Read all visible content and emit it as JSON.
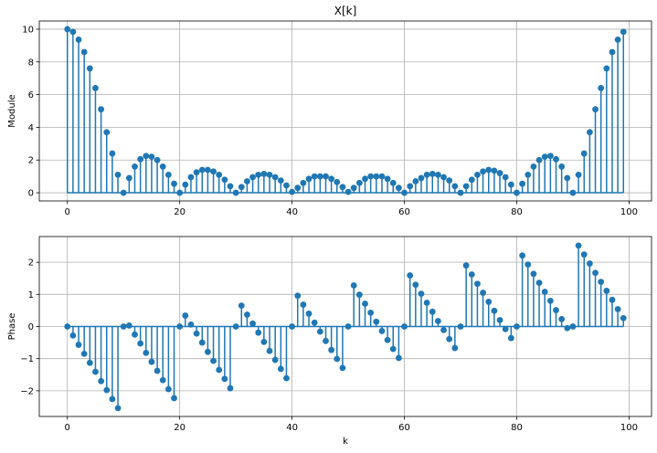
{
  "colors": {
    "stem": "#1f77b4",
    "grid": "#b0b0b0",
    "axes": "#000000"
  },
  "chart_data": [
    {
      "type": "stem",
      "title": "X[k]",
      "xlabel": "",
      "ylabel": "Module",
      "xlim": [
        -5,
        104
      ],
      "ylim": [
        -0.5,
        10.5
      ],
      "xticks": [
        0,
        20,
        40,
        60,
        80,
        100
      ],
      "yticks": [
        0,
        2,
        4,
        6,
        8,
        10
      ],
      "grid": true,
      "x": [
        0,
        1,
        2,
        3,
        4,
        5,
        6,
        7,
        8,
        9,
        10,
        11,
        12,
        13,
        14,
        15,
        16,
        17,
        18,
        19,
        20,
        21,
        22,
        23,
        24,
        25,
        26,
        27,
        28,
        29,
        30,
        31,
        32,
        33,
        34,
        35,
        36,
        37,
        38,
        39,
        40,
        41,
        42,
        43,
        44,
        45,
        46,
        47,
        48,
        49,
        50,
        51,
        52,
        53,
        54,
        55,
        56,
        57,
        58,
        59,
        60,
        61,
        62,
        63,
        64,
        65,
        66,
        67,
        68,
        69,
        70,
        71,
        72,
        73,
        74,
        75,
        76,
        77,
        78,
        79,
        80,
        81,
        82,
        83,
        84,
        85,
        86,
        87,
        88,
        89,
        90,
        91,
        92,
        93,
        94,
        95,
        96,
        97,
        98,
        99
      ],
      "values": [
        10.0,
        9.84,
        9.36,
        8.6,
        7.6,
        6.4,
        5.1,
        3.7,
        2.4,
        1.1,
        0.0,
        0.9,
        1.6,
        2.05,
        2.25,
        2.2,
        2.0,
        1.6,
        1.1,
        0.55,
        0.0,
        0.5,
        0.95,
        1.25,
        1.4,
        1.4,
        1.3,
        1.1,
        0.8,
        0.4,
        0.0,
        0.35,
        0.7,
        0.95,
        1.1,
        1.15,
        1.1,
        0.95,
        0.75,
        0.45,
        0.05,
        0.3,
        0.6,
        0.85,
        1.0,
        1.0,
        1.0,
        0.85,
        0.65,
        0.35,
        0.05,
        0.3,
        0.6,
        0.85,
        1.0,
        1.0,
        1.0,
        0.85,
        0.6,
        0.3,
        0.0,
        0.4,
        0.7,
        0.9,
        1.1,
        1.15,
        1.1,
        0.95,
        0.75,
        0.4,
        0.0,
        0.4,
        0.8,
        1.1,
        1.3,
        1.4,
        1.35,
        1.2,
        0.95,
        0.5,
        0.0,
        0.55,
        1.1,
        1.6,
        2.0,
        2.2,
        2.25,
        2.05,
        1.6,
        0.9,
        0.0,
        1.1,
        2.4,
        3.7,
        5.1,
        6.4,
        7.6,
        8.6,
        9.36,
        9.84
      ]
    },
    {
      "type": "stem",
      "title": "",
      "xlabel": "k",
      "ylabel": "Phase",
      "xlim": [
        -5,
        104
      ],
      "ylim": [
        -2.8,
        2.8
      ],
      "xticks": [
        0,
        20,
        40,
        60,
        80,
        100
      ],
      "yticks": [
        -2,
        -1,
        0,
        1,
        2
      ],
      "grid": true,
      "x": [
        0,
        1,
        2,
        3,
        4,
        5,
        6,
        7,
        8,
        9,
        10,
        11,
        12,
        13,
        14,
        15,
        16,
        17,
        18,
        19,
        20,
        21,
        22,
        23,
        24,
        25,
        26,
        27,
        28,
        29,
        30,
        31,
        32,
        33,
        34,
        35,
        36,
        37,
        38,
        39,
        40,
        41,
        42,
        43,
        44,
        45,
        46,
        47,
        48,
        49,
        50,
        51,
        52,
        53,
        54,
        55,
        56,
        57,
        58,
        59,
        60,
        61,
        62,
        63,
        64,
        65,
        66,
        67,
        68,
        69,
        70,
        71,
        72,
        73,
        74,
        75,
        76,
        77,
        78,
        79,
        80,
        81,
        82,
        83,
        84,
        85,
        86,
        87,
        88,
        89,
        90,
        91,
        92,
        93,
        94,
        95,
        96,
        97,
        98,
        99
      ],
      "values": [
        0.0,
        -0.28,
        -0.57,
        -0.85,
        -1.13,
        -1.41,
        -1.7,
        -1.98,
        -2.26,
        -2.54,
        0.0,
        0.03,
        -0.25,
        -0.53,
        -0.82,
        -1.1,
        -1.38,
        -1.67,
        -1.95,
        -2.23,
        0.0,
        0.34,
        0.06,
        -0.22,
        -0.5,
        -0.79,
        -1.07,
        -1.35,
        -1.63,
        -1.92,
        0.0,
        0.65,
        0.37,
        0.09,
        -0.19,
        -0.48,
        -0.76,
        -1.04,
        -1.32,
        -1.61,
        0.0,
        0.96,
        0.68,
        0.4,
        0.12,
        -0.16,
        -0.45,
        -0.73,
        -1.01,
        -1.29,
        0.0,
        1.28,
        0.99,
        0.71,
        0.43,
        0.15,
        -0.14,
        -0.42,
        -0.7,
        -0.98,
        0.0,
        1.59,
        1.3,
        1.02,
        0.74,
        0.46,
        0.17,
        -0.11,
        -0.39,
        -0.67,
        0.0,
        1.9,
        1.62,
        1.33,
        1.05,
        0.77,
        0.49,
        0.2,
        -0.08,
        -0.36,
        0.0,
        2.21,
        1.93,
        1.64,
        1.36,
        1.08,
        0.8,
        0.51,
        0.23,
        -0.05,
        0.0,
        2.52,
        2.24,
        1.96,
        1.67,
        1.39,
        1.11,
        0.83,
        0.54,
        0.26
      ]
    }
  ]
}
